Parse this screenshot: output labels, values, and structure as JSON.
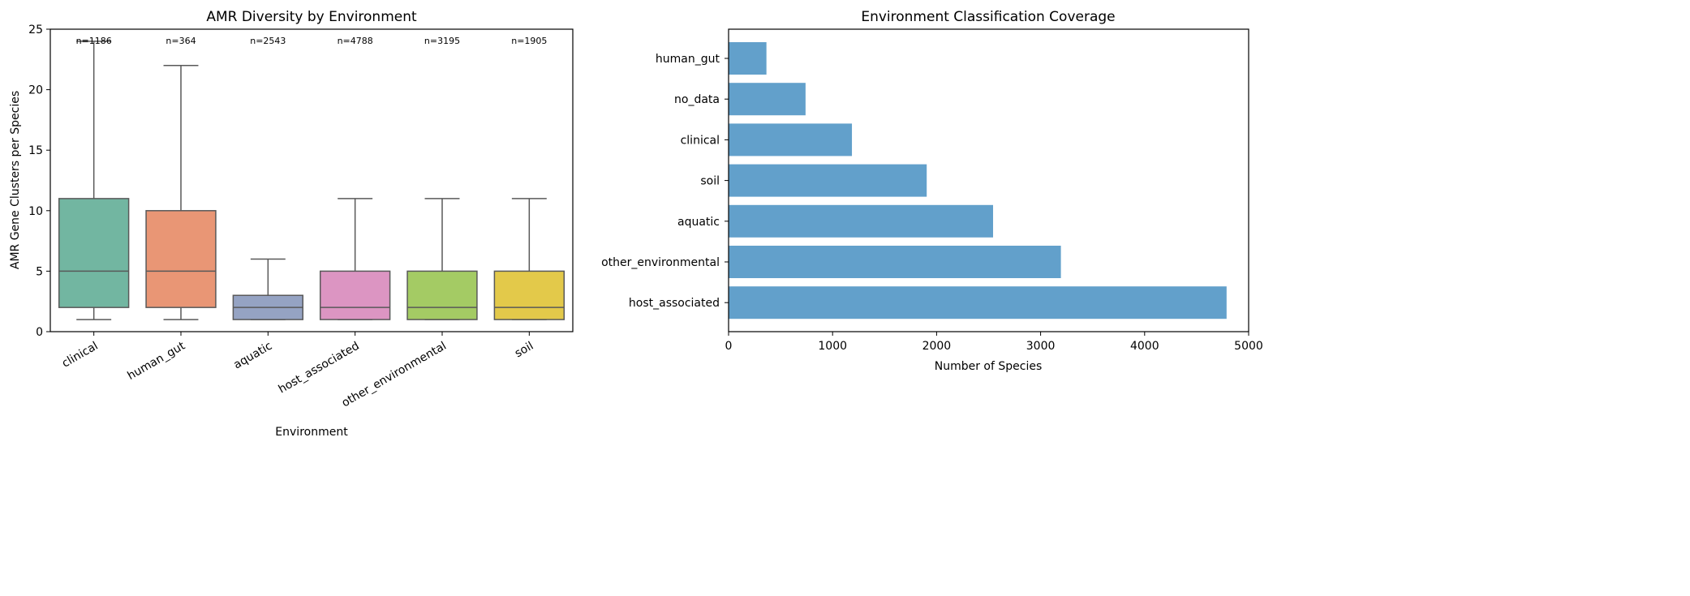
{
  "chart_data": [
    {
      "type": "box",
      "title": "AMR Diversity by Environment",
      "xlabel": "Environment",
      "ylabel": "AMR Gene Clusters per Species",
      "ylim": [
        0,
        25
      ],
      "yticks": [
        0,
        5,
        10,
        15,
        20,
        25
      ],
      "grid": false,
      "categories": [
        "clinical",
        "human_gut",
        "aquatic",
        "host_associated",
        "other_environmental",
        "soil"
      ],
      "counts": [
        "n=1186",
        "n=364",
        "n=2543",
        "n=4788",
        "n=3195",
        "n=1905"
      ],
      "boxes": [
        {
          "whisker_low": 1,
          "q1": 2,
          "median": 5,
          "q3": 11,
          "whisker_high": 24
        },
        {
          "whisker_low": 1,
          "q1": 2,
          "median": 5,
          "q3": 10,
          "whisker_high": 22
        },
        {
          "whisker_low": 1,
          "q1": 1,
          "median": 2,
          "q3": 3,
          "whisker_high": 6
        },
        {
          "whisker_low": 1,
          "q1": 1,
          "median": 2,
          "q3": 5,
          "whisker_high": 11
        },
        {
          "whisker_low": 1,
          "q1": 1,
          "median": 2,
          "q3": 5,
          "whisker_high": 11
        },
        {
          "whisker_low": 1,
          "q1": 1,
          "median": 2,
          "q3": 5,
          "whisker_high": 11
        }
      ],
      "colors": [
        "#72b6a1",
        "#e99675",
        "#95a3c3",
        "#dc95c2",
        "#a4cb64",
        "#e3c94a"
      ]
    },
    {
      "type": "barh",
      "title": "Environment Classification Coverage",
      "xlabel": "Number of Species",
      "ylabel": "",
      "xlim": [
        0,
        5000
      ],
      "xticks": [
        0,
        1000,
        2000,
        3000,
        4000,
        5000
      ],
      "grid": false,
      "categories": [
        "human_gut",
        "no_data",
        "clinical",
        "soil",
        "aquatic",
        "other_environmental",
        "host_associated"
      ],
      "values": [
        364,
        740,
        1186,
        1905,
        2543,
        3195,
        4788
      ],
      "color": "#62a0cb"
    }
  ]
}
